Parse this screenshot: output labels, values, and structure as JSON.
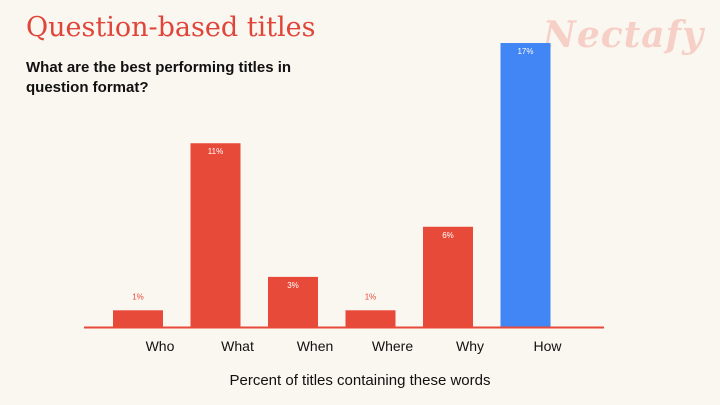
{
  "header": {
    "title": "Question-based titles",
    "subtitle": "What are the best performing titles in question format?",
    "brand": "Nectafy"
  },
  "colors": {
    "background": "#faf6f0",
    "bar": "#e84a3a",
    "highlight": "#4285f4",
    "title": "#e0453a",
    "brand": "#f6cfc6"
  },
  "chart_data": {
    "type": "bar",
    "title": "Question-based titles",
    "subtitle": "What are the best performing titles in question format?",
    "xlabel": "Percent of titles containing these words",
    "ylabel": "",
    "categories": [
      "Who",
      "What",
      "When",
      "Where",
      "Why",
      "How"
    ],
    "values": [
      1,
      11,
      3,
      1,
      6,
      17
    ],
    "data_labels": [
      "1%",
      "11%",
      "3%",
      "1%",
      "6%",
      "17%"
    ],
    "highlight_index": 5,
    "ylim": [
      0,
      17.3
    ],
    "grid": false,
    "legend": "none"
  }
}
